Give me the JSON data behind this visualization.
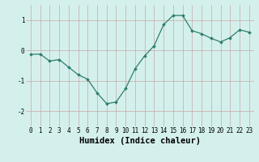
{
  "x": [
    0,
    1,
    2,
    3,
    4,
    5,
    6,
    7,
    8,
    9,
    10,
    11,
    12,
    13,
    14,
    15,
    16,
    17,
    18,
    19,
    20,
    21,
    22,
    23
  ],
  "y": [
    -0.13,
    -0.12,
    -0.35,
    -0.3,
    -0.55,
    -0.8,
    -0.95,
    -1.4,
    -1.75,
    -1.7,
    -1.25,
    -0.6,
    -0.18,
    0.15,
    0.85,
    1.15,
    1.15,
    0.65,
    0.55,
    0.4,
    0.28,
    0.42,
    0.68,
    0.6
  ],
  "xlabel": "Humidex (Indice chaleur)",
  "ylim": [
    -2.5,
    1.5
  ],
  "xlim": [
    -0.5,
    23.5
  ],
  "yticks": [
    -2,
    -1,
    0,
    1
  ],
  "xticks": [
    0,
    1,
    2,
    3,
    4,
    5,
    6,
    7,
    8,
    9,
    10,
    11,
    12,
    13,
    14,
    15,
    16,
    17,
    18,
    19,
    20,
    21,
    22,
    23
  ],
  "line_color": "#2d7d6e",
  "marker": "D",
  "marker_size": 1.8,
  "bg_color": "#d4f0ec",
  "grid_color": "#c8a8a8",
  "tick_label_fontsize": 5.5,
  "xlabel_fontsize": 7.5,
  "ylabel_fontsize": 6.5
}
